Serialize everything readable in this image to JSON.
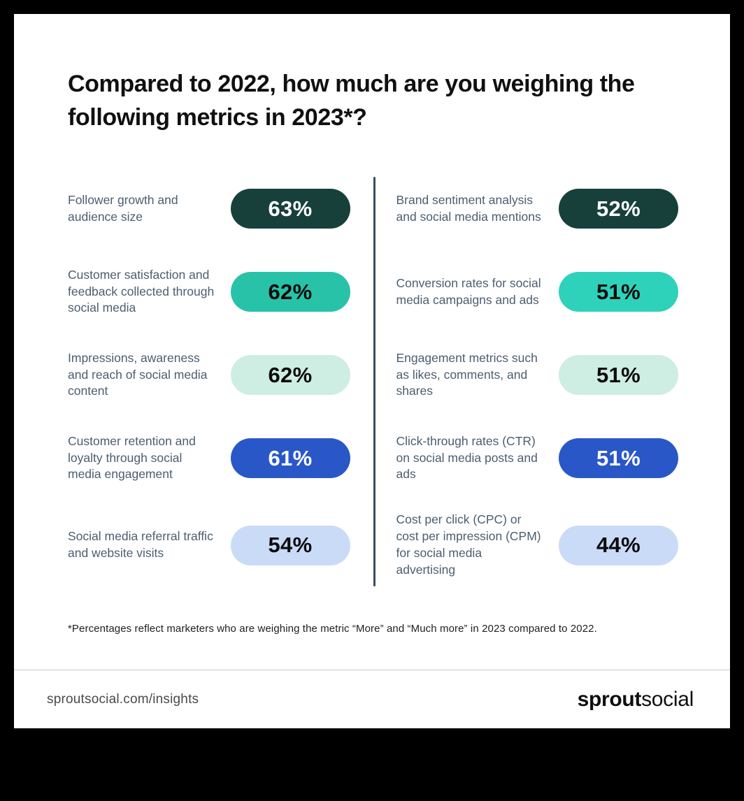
{
  "header": {
    "title": "Compared to 2022, how much are you weighing the following metrics in 2023*?"
  },
  "footnote": {
    "text": "*Percentages reflect marketers who are weighing the metric “More” and “Much more” in 2023 compared to 2022."
  },
  "footer": {
    "url": "sproutsocial.com/insights",
    "logo_bold": "sprout",
    "logo_light": "social"
  },
  "colors": {
    "background": "#000000",
    "card": "#FFFFFF",
    "dark_teal": "#17403B",
    "teal": "#28C2A9",
    "bright_teal": "#2ED2BB",
    "mint": "#CEEDE3",
    "blue": "#2A57C8",
    "lavender": "#C9DBF7",
    "label_text": "#4C5E71",
    "divider": "#3A4C61"
  },
  "chart_data": {
    "type": "bar",
    "title": "Compared to 2022, how much are you weighing the following metrics in 2023*?",
    "unit": "%",
    "note": "*Percentages reflect marketers who are weighing the metric “More” and “Much more” in 2023 compared to 2022.",
    "categories": [
      "Follower growth and audience size",
      "Customer satisfaction and feedback collected through social media",
      "Impressions, awareness and reach of social media content",
      "Customer retention and loyalty through social media engagement",
      "Social media referral traffic and website visits",
      "Brand sentiment analysis and social media mentions",
      "Conversion rates for social media campaigns and ads",
      "Engagement metrics such as likes, comments, and shares",
      "Click-through rates (CTR) on social media posts and ads",
      "Cost per click (CPC) or cost per impression (CPM) for social media advertising"
    ],
    "values": [
      63,
      62,
      62,
      61,
      54,
      52,
      51,
      51,
      51,
      44
    ],
    "columns": [
      {
        "side": "left",
        "items": [
          {
            "label": "Follower growth and audience size",
            "value": 63,
            "display": "63%",
            "pill_color": "#17403B",
            "text_color": "#FFFFFF"
          },
          {
            "label": "Customer satisfaction and feedback collected through social media",
            "value": 62,
            "display": "62%",
            "pill_color": "#28C2A9",
            "text_color": "#0B0B0B"
          },
          {
            "label": "Impressions, awareness and reach of social media content",
            "value": 62,
            "display": "62%",
            "pill_color": "#CEEDE3",
            "text_color": "#0B0B0B"
          },
          {
            "label": "Customer retention and loyalty through social media engagement",
            "value": 61,
            "display": "61%",
            "pill_color": "#2A57C8",
            "text_color": "#FFFFFF"
          },
          {
            "label": "Social media referral traffic and website visits",
            "value": 54,
            "display": "54%",
            "pill_color": "#C9DBF7",
            "text_color": "#0B0B0B"
          }
        ]
      },
      {
        "side": "right",
        "items": [
          {
            "label": "Brand sentiment analysis and social media mentions",
            "value": 52,
            "display": "52%",
            "pill_color": "#17403B",
            "text_color": "#FFFFFF"
          },
          {
            "label": "Conversion rates for social media campaigns and ads",
            "value": 51,
            "display": "51%",
            "pill_color": "#2ED2BB",
            "text_color": "#0B0B0B"
          },
          {
            "label": "Engagement metrics such as likes, comments, and shares",
            "value": 51,
            "display": "51%",
            "pill_color": "#CEEDE3",
            "text_color": "#0B0B0B"
          },
          {
            "label": "Click-through rates (CTR) on social media posts and ads",
            "value": 51,
            "display": "51%",
            "pill_color": "#2A57C8",
            "text_color": "#FFFFFF"
          },
          {
            "label": "Cost per click (CPC) or cost per impression (CPM) for social media advertising",
            "value": 44,
            "display": "44%",
            "pill_color": "#C9DBF7",
            "text_color": "#0B0B0B"
          }
        ]
      }
    ]
  }
}
